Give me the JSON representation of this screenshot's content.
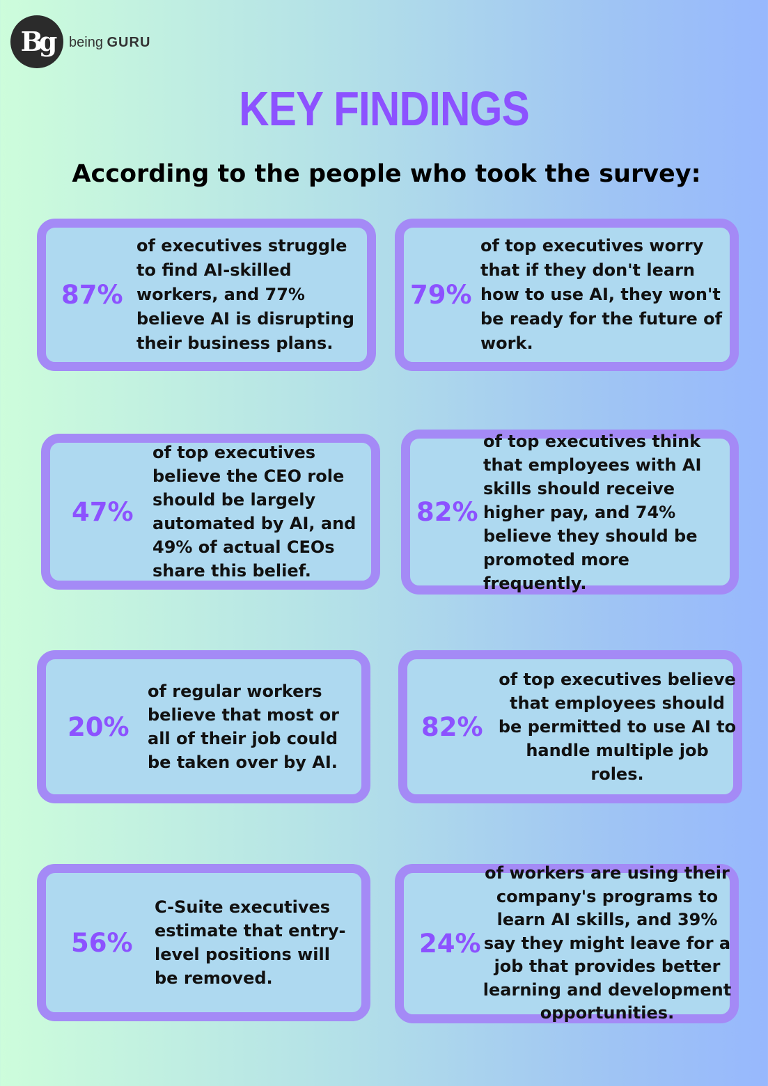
{
  "brand": {
    "name_light": "being",
    "name_bold": "GURU",
    "logo_letters": "Bg"
  },
  "title": "KEY FINDINGS",
  "subtitle": "According to the people who took the survey:",
  "findings": [
    {
      "percent": "87%",
      "text": "of executives struggle to find AI-skilled workers, and 77% believe AI is disrupting their business plans."
    },
    {
      "percent": "79%",
      "text": "of top executives worry that if they don't learn how to use AI, they won't be ready for the future of work."
    },
    {
      "percent": "47%",
      "text": "of top executives believe the CEO role should be largely automated by AI, and 49% of actual CEOs share this belief."
    },
    {
      "percent": "82%",
      "text": "of top executives think that employees with AI skills should receive higher pay, and 74% believe they should be promoted more frequently."
    },
    {
      "percent": "20%",
      "text": "of regular workers believe that most or all of their job could be taken over by AI."
    },
    {
      "percent": "82%",
      "text": "of top executives believe that employees should be permitted to use AI to handle multiple job roles."
    },
    {
      "percent": "56%",
      "text": "C-Suite executives estimate that entry-level positions will be removed."
    },
    {
      "percent": "24%",
      "text": "of workers are using their company's programs to learn AI skills, and 39% say they might leave for a job that provides better learning and development opportunities."
    }
  ]
}
